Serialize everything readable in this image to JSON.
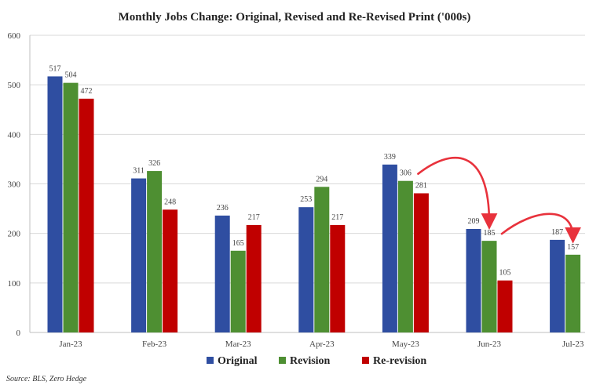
{
  "chart_data": {
    "type": "bar",
    "title": "Monthly Jobs Change: Original, Revised and Re-Revised Print ('000s)",
    "xlabel": "",
    "ylabel": "",
    "ylim": [
      0,
      600
    ],
    "yticks": [
      0,
      100,
      200,
      300,
      400,
      500,
      600
    ],
    "grid": true,
    "legend_position": "bottom-center",
    "categories": [
      "Jan-23",
      "Feb-23",
      "Mar-23",
      "Apr-23",
      "May-23",
      "Jun-23",
      "Jul-23"
    ],
    "series": [
      {
        "name": "Original",
        "color": "#2f4ea1",
        "values": [
          517,
          311,
          236,
          253,
          339,
          209,
          187
        ]
      },
      {
        "name": "Revision",
        "color": "#4e8f32",
        "values": [
          504,
          326,
          165,
          294,
          306,
          185,
          157
        ]
      },
      {
        "name": "Re-revision",
        "color": "#c00000",
        "values": [
          472,
          248,
          217,
          217,
          281,
          105,
          null
        ]
      }
    ],
    "annotations": {
      "arrow_color": "#e8323c",
      "arrows": [
        {
          "from": {
            "category": "May-23",
            "series": "Revision"
          },
          "to": {
            "category": "Jun-23",
            "series": "Revision"
          }
        },
        {
          "from": {
            "category": "Jun-23",
            "series": "Revision"
          },
          "to": {
            "category": "Jul-23",
            "series": "Revision"
          }
        }
      ]
    },
    "source": "Source: BLS, Zero Hedge"
  }
}
